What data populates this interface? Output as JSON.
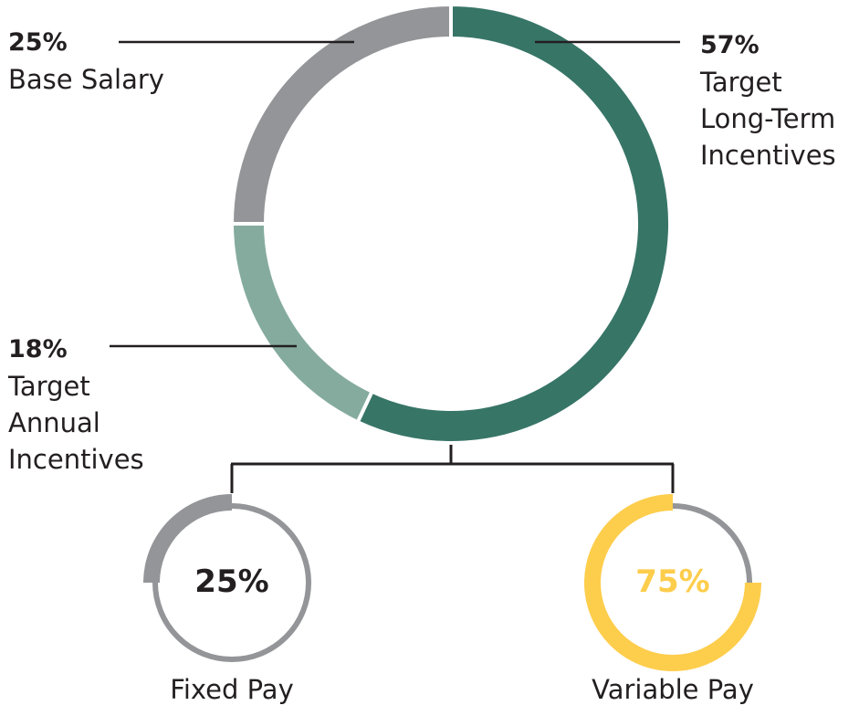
{
  "chart_data": [
    {
      "type": "pie",
      "variant": "donut",
      "categories": [
        "Target Long-Term Incentives",
        "Target Annual Incentives",
        "Base Salary"
      ],
      "values": [
        57,
        18,
        25
      ],
      "labels": [
        {
          "pct": "57%",
          "name": "Target\nLong-Term\nIncentives"
        },
        {
          "pct": "18%",
          "name": "Target\nAnnual\nIncentives"
        },
        {
          "pct": "25%",
          "name": "Base Salary"
        }
      ],
      "colors": [
        "#377567",
        "#85ab9f",
        "#939598"
      ]
    },
    {
      "type": "pie",
      "variant": "progress-ring",
      "name": "Fixed Pay",
      "value": 25,
      "pct_label": "25%",
      "fill_color": "#939598",
      "track_color": "#939598",
      "text_color": "#231f20"
    },
    {
      "type": "pie",
      "variant": "progress-ring",
      "name": "Variable Pay",
      "value": 75,
      "pct_label": "75%",
      "fill_color": "#fdcd4c",
      "track_color": "#939598",
      "text_color": "#fdcd4c"
    }
  ],
  "connector_color": "#231f20"
}
